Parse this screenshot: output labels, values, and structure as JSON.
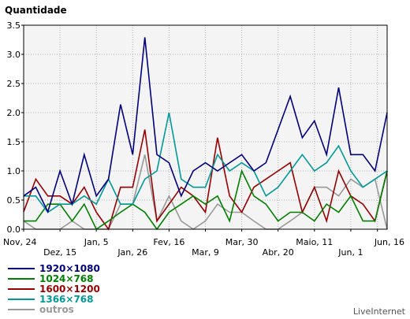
{
  "chart_data": {
    "type": "line",
    "ylabel": "Quantidade",
    "ylim": [
      0,
      3.5
    ],
    "yticks": [
      "0.0",
      "0.5",
      "1.0",
      "1.5",
      "2.0",
      "2.5",
      "3.0",
      "3.5"
    ],
    "x_start": "Nov, 24",
    "x_end": "Jun, 16",
    "xticks_row1": [
      "Nov, 24",
      "Jan, 5",
      "Fev, 16",
      "Mar, 30",
      "Maio, 11",
      "Jun, 16"
    ],
    "xticks_row2": [
      "Dez, 15",
      "Jan, 26",
      "Mar, 9",
      "Abr, 20",
      "Jun, 1"
    ],
    "xtick_index": {
      "Nov, 24": 0,
      "Dez, 15": 3,
      "Jan, 5": 6,
      "Jan, 26": 9,
      "Fev, 16": 12,
      "Mar, 9": 15,
      "Mar, 30": 18,
      "Abr, 20": 21,
      "Maio, 11": 24,
      "Jun, 1": 27,
      "Jun, 16": 29.2
    },
    "grid": true,
    "legend_position": "bottom-left",
    "series": [
      {
        "name": "1920×1080",
        "color": "#000080",
        "values": [
          0.57,
          0.72,
          0.3,
          1.0,
          0.43,
          1.28,
          0.57,
          0.86,
          2.14,
          1.28,
          3.29,
          1.28,
          1.14,
          0.57,
          1.0,
          1.14,
          1.0,
          1.14,
          1.28,
          1.0,
          1.14,
          1.71,
          2.28,
          1.57,
          1.86,
          1.28,
          2.43,
          1.28,
          1.28,
          1.0,
          2.0
        ]
      },
      {
        "name": "1024×768",
        "color": "#008000",
        "values": [
          0.14,
          0.14,
          0.43,
          0.43,
          0.14,
          0.43,
          0.0,
          0.14,
          0.29,
          0.43,
          0.29,
          0.0,
          0.29,
          0.43,
          0.57,
          0.43,
          0.57,
          0.14,
          1.0,
          0.57,
          0.43,
          0.14,
          0.29,
          0.29,
          0.14,
          0.43,
          0.29,
          0.57,
          0.14,
          0.14,
          1.0
        ]
      },
      {
        "name": "1600×1200",
        "color": "#990000",
        "values": [
          0.3,
          0.86,
          0.57,
          0.57,
          0.43,
          0.72,
          0.29,
          0.0,
          0.72,
          0.72,
          1.71,
          0.14,
          0.43,
          0.72,
          0.57,
          0.29,
          1.57,
          0.57,
          0.29,
          0.72,
          0.86,
          1.0,
          1.14,
          0.29,
          0.72,
          0.14,
          1.0,
          0.57,
          0.43,
          0.14,
          1.0
        ]
      },
      {
        "name": "1366×768",
        "color": "#00999a",
        "values": [
          0.57,
          0.57,
          0.29,
          0.43,
          0.43,
          0.57,
          0.43,
          0.86,
          0.43,
          0.43,
          0.86,
          1.0,
          2.0,
          0.86,
          0.72,
          0.72,
          1.28,
          1.0,
          1.14,
          1.0,
          0.57,
          0.72,
          1.0,
          1.28,
          1.0,
          1.14,
          1.43,
          1.0,
          0.72,
          0.86,
          1.0
        ]
      },
      {
        "name": "outros",
        "color": "#999999",
        "values": [
          0.14,
          0.0,
          0.0,
          0.0,
          0.14,
          0.0,
          0.0,
          0.0,
          0.43,
          0.43,
          1.28,
          0.14,
          0.57,
          0.14,
          0.0,
          0.14,
          0.43,
          0.29,
          0.29,
          0.14,
          0.0,
          0.0,
          0.14,
          0.29,
          0.72,
          0.72,
          0.57,
          0.86,
          0.72,
          0.86,
          0.0
        ]
      }
    ]
  },
  "credit": "LiveInternet"
}
